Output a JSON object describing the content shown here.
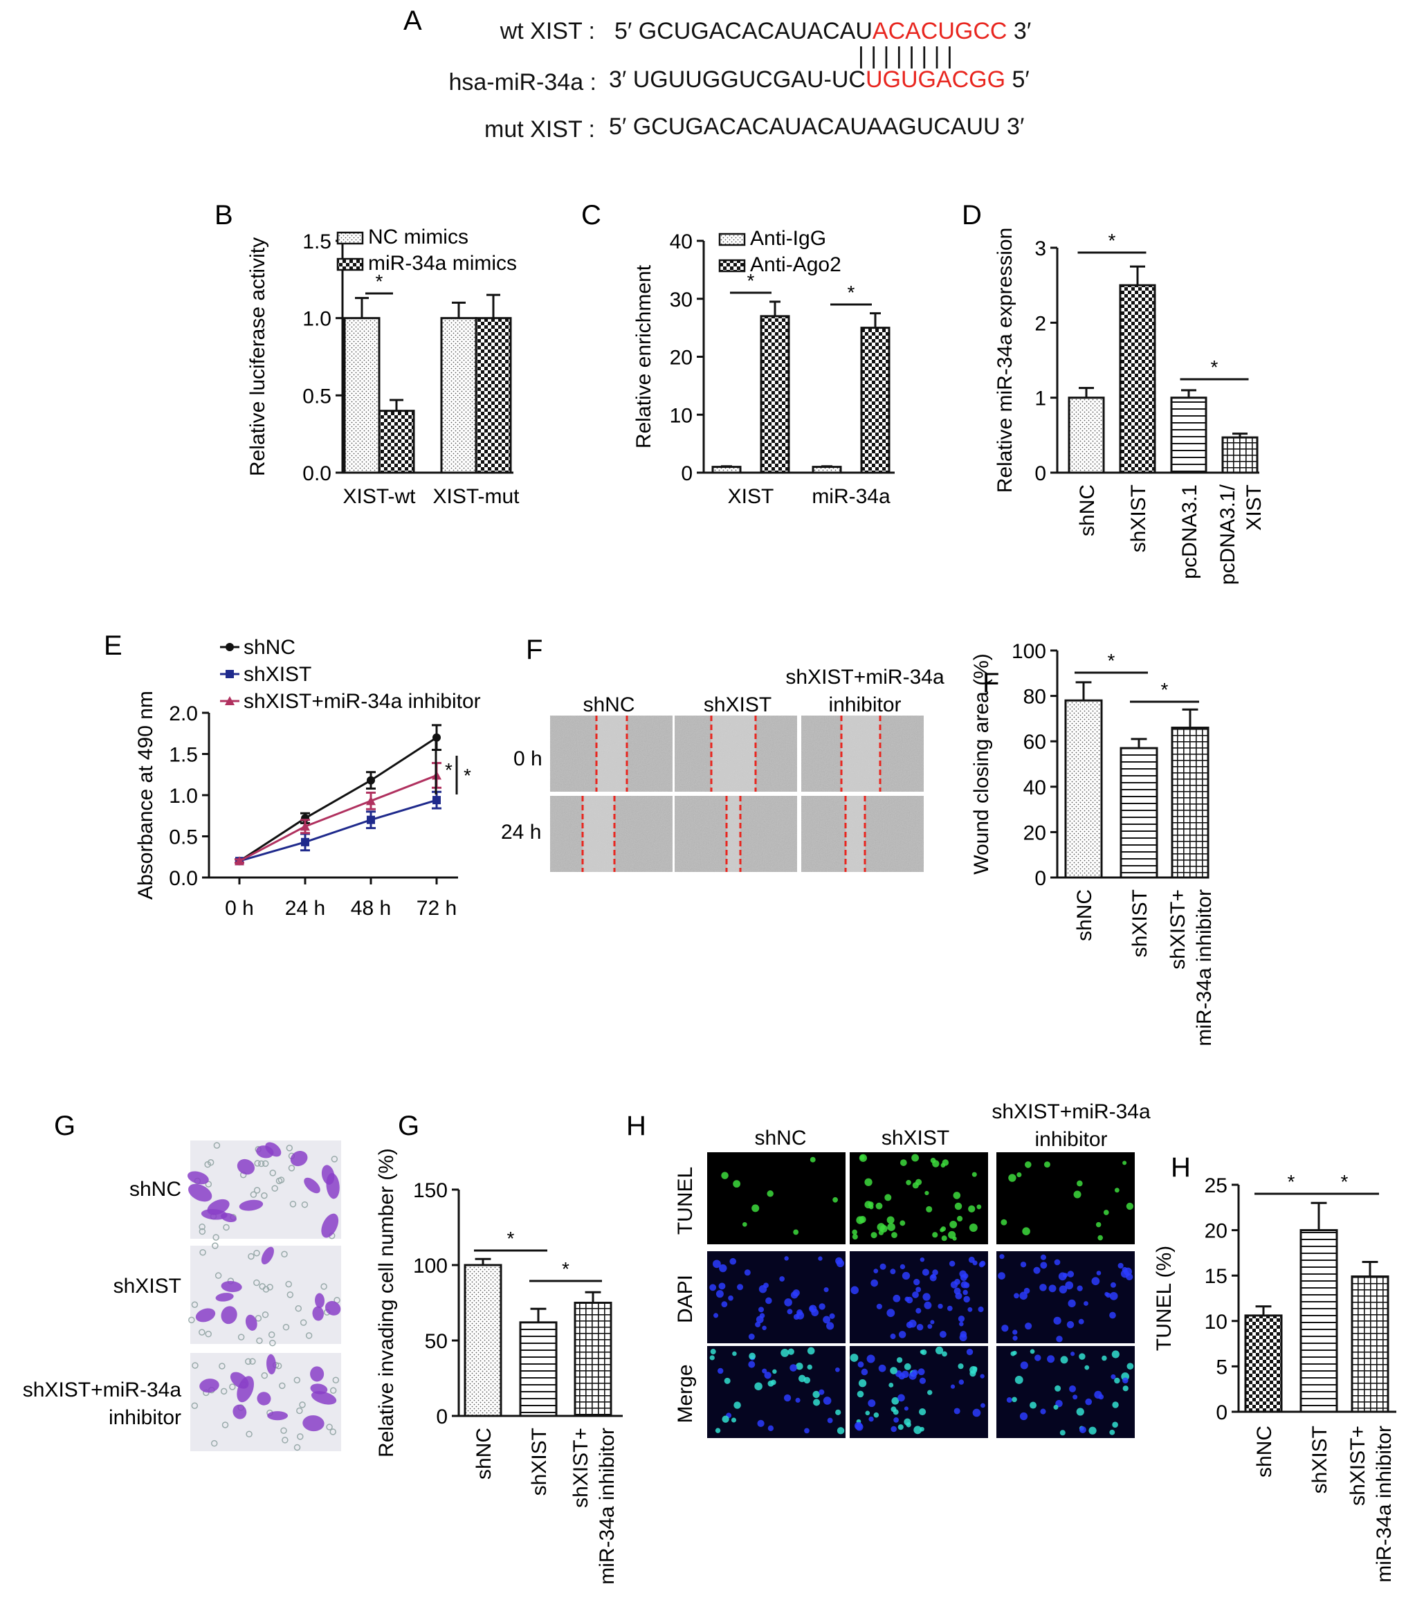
{
  "colors": {
    "red": "#e8261f",
    "black": "#111111",
    "line_shxist": "#1f2a8c",
    "line_inhib": "#b0315f",
    "dna_red": "#e8261f"
  },
  "panelA": {
    "label": "A",
    "rows": [
      {
        "name": "wt XIST :",
        "prefix": "5′ GCUGACACAUACAU",
        "highlight": "ACACUGCC",
        "suffix": " 3′"
      },
      {
        "name": "hsa-miR-34a :",
        "prefix": "3′ UGUUGGUCGAU-UC",
        "highlight": "UGUGACGG",
        "suffix": " 5′"
      },
      {
        "name": "mut XIST :",
        "prefix": "5′ GCUGACACAUACAUAAGUCAUU 3′",
        "highlight": "",
        "suffix": ""
      }
    ],
    "pairs": "| | | | | | | |"
  },
  "chart_data": [
    {
      "panel": "B",
      "type": "bar",
      "ylabel": "Relative luciferase activity",
      "ylim": [
        0,
        1.5
      ],
      "yticks": [
        "0.0",
        "0.5",
        "1.0",
        "1.5"
      ],
      "categories": [
        "XIST-wt",
        "XIST-mut"
      ],
      "series": [
        {
          "name": "NC mimics",
          "pattern": "dots",
          "values": [
            1.0,
            1.0
          ],
          "errors": [
            0.13,
            0.1
          ]
        },
        {
          "name": "miR-34a mimics",
          "pattern": "checker",
          "values": [
            0.4,
            1.0
          ],
          "errors": [
            0.07,
            0.15
          ]
        }
      ],
      "significance": [
        "*"
      ]
    },
    {
      "panel": "C",
      "type": "bar",
      "ylabel": "Relative enrichment",
      "ylim": [
        0,
        40
      ],
      "yticks": [
        "0",
        "10",
        "20",
        "30",
        "40"
      ],
      "categories": [
        "XIST",
        "miR-34a"
      ],
      "series": [
        {
          "name": "Anti-IgG",
          "pattern": "dots",
          "values": [
            1.0,
            1.0
          ],
          "errors": [
            0.1,
            0.1
          ]
        },
        {
          "name": "Anti-Ago2",
          "pattern": "checker",
          "values": [
            27,
            25
          ],
          "errors": [
            2.5,
            2.5
          ]
        }
      ],
      "significance": [
        "*",
        "*"
      ]
    },
    {
      "panel": "D",
      "type": "bar",
      "ylabel": "Relative miR-34a expression",
      "ylim": [
        0,
        3
      ],
      "yticks": [
        "0",
        "1",
        "2",
        "3"
      ],
      "categories": [
        "shNC",
        "shXIST",
        "pcDNA3.1",
        "pcDNA3.1/ XIST"
      ],
      "values": [
        1.0,
        2.5,
        1.0,
        0.47
      ],
      "errors": [
        0.13,
        0.25,
        0.1,
        0.05
      ],
      "patterns": [
        "dots",
        "checker",
        "hlines",
        "grid"
      ],
      "significance": [
        "*",
        "*"
      ]
    },
    {
      "panel": "E",
      "type": "line",
      "ylabel": "Absorbance at 490 nm",
      "ylim": [
        0,
        2.0
      ],
      "yticks": [
        "0.0",
        "0.5",
        "1.0",
        "1.5",
        "2.0"
      ],
      "x": [
        "0 h",
        "24 h",
        "48 h",
        "72 h"
      ],
      "series": [
        {
          "name": "shNC",
          "values": [
            0.2,
            0.72,
            1.18,
            1.7
          ],
          "errors": [
            0.02,
            0.06,
            0.1,
            0.15
          ]
        },
        {
          "name": "shXIST",
          "values": [
            0.2,
            0.43,
            0.7,
            0.94
          ],
          "errors": [
            0.02,
            0.1,
            0.1,
            0.1
          ]
        },
        {
          "name": "shXIST+miR-34a inhibitor",
          "values": [
            0.2,
            0.62,
            0.93,
            1.24
          ],
          "errors": [
            0.02,
            0.08,
            0.1,
            0.15
          ]
        }
      ],
      "significance": [
        "*",
        "*"
      ]
    },
    {
      "panel": "F",
      "type": "bar",
      "ylabel": "Wound closing area (%)",
      "ylim": [
        0,
        100
      ],
      "yticks": [
        "0",
        "20",
        "40",
        "60",
        "80",
        "100"
      ],
      "categories": [
        "shNC",
        "shXIST",
        "shXIST+ miR-34a inhibitor"
      ],
      "values": [
        78,
        57,
        66
      ],
      "errors": [
        8,
        4,
        8
      ],
      "patterns": [
        "dots",
        "hlines",
        "grid"
      ],
      "significance": [
        "*",
        "*"
      ]
    },
    {
      "panel": "G",
      "type": "bar",
      "ylabel": "Relative invading cell number (%)",
      "ylim": [
        0,
        150
      ],
      "yticks": [
        "0",
        "50",
        "100",
        "150"
      ],
      "categories": [
        "shNC",
        "shXIST",
        "shXIST+ miR-34a inhibitor"
      ],
      "values": [
        100,
        62,
        75
      ],
      "errors": [
        4,
        9,
        7
      ],
      "patterns": [
        "dots",
        "hlines",
        "grid"
      ],
      "significance": [
        "*",
        "*"
      ]
    },
    {
      "panel": "H",
      "type": "bar",
      "ylabel": "TUNEL (%)",
      "ylim": [
        0,
        25
      ],
      "yticks": [
        "0",
        "5",
        "10",
        "15",
        "20",
        "25"
      ],
      "categories": [
        "shNC",
        "shXIST",
        "shXIST+ miR-34a inhibitor"
      ],
      "values": [
        10.6,
        20,
        14.9
      ],
      "errors": [
        1.0,
        3.0,
        1.6
      ],
      "patterns": [
        "checker",
        "hlines",
        "grid"
      ],
      "significance": [
        "*",
        "*"
      ]
    }
  ],
  "panelF_images": {
    "label": "F",
    "columns": [
      "shNC",
      "shXIST",
      "shXIST+miR-34a inhibitor"
    ],
    "rows": [
      "0 h",
      "24 h"
    ]
  },
  "panelG_images": {
    "label": "G",
    "rows": [
      "shNC",
      "shXIST",
      "shXIST+miR-34a inhibitor"
    ]
  },
  "panelH_images": {
    "label": "H",
    "columns": [
      "shNC",
      "shXIST",
      "shXIST+miR-34a inhibitor"
    ],
    "rows": [
      "TUNEL",
      "DAPI",
      "Merge"
    ]
  }
}
